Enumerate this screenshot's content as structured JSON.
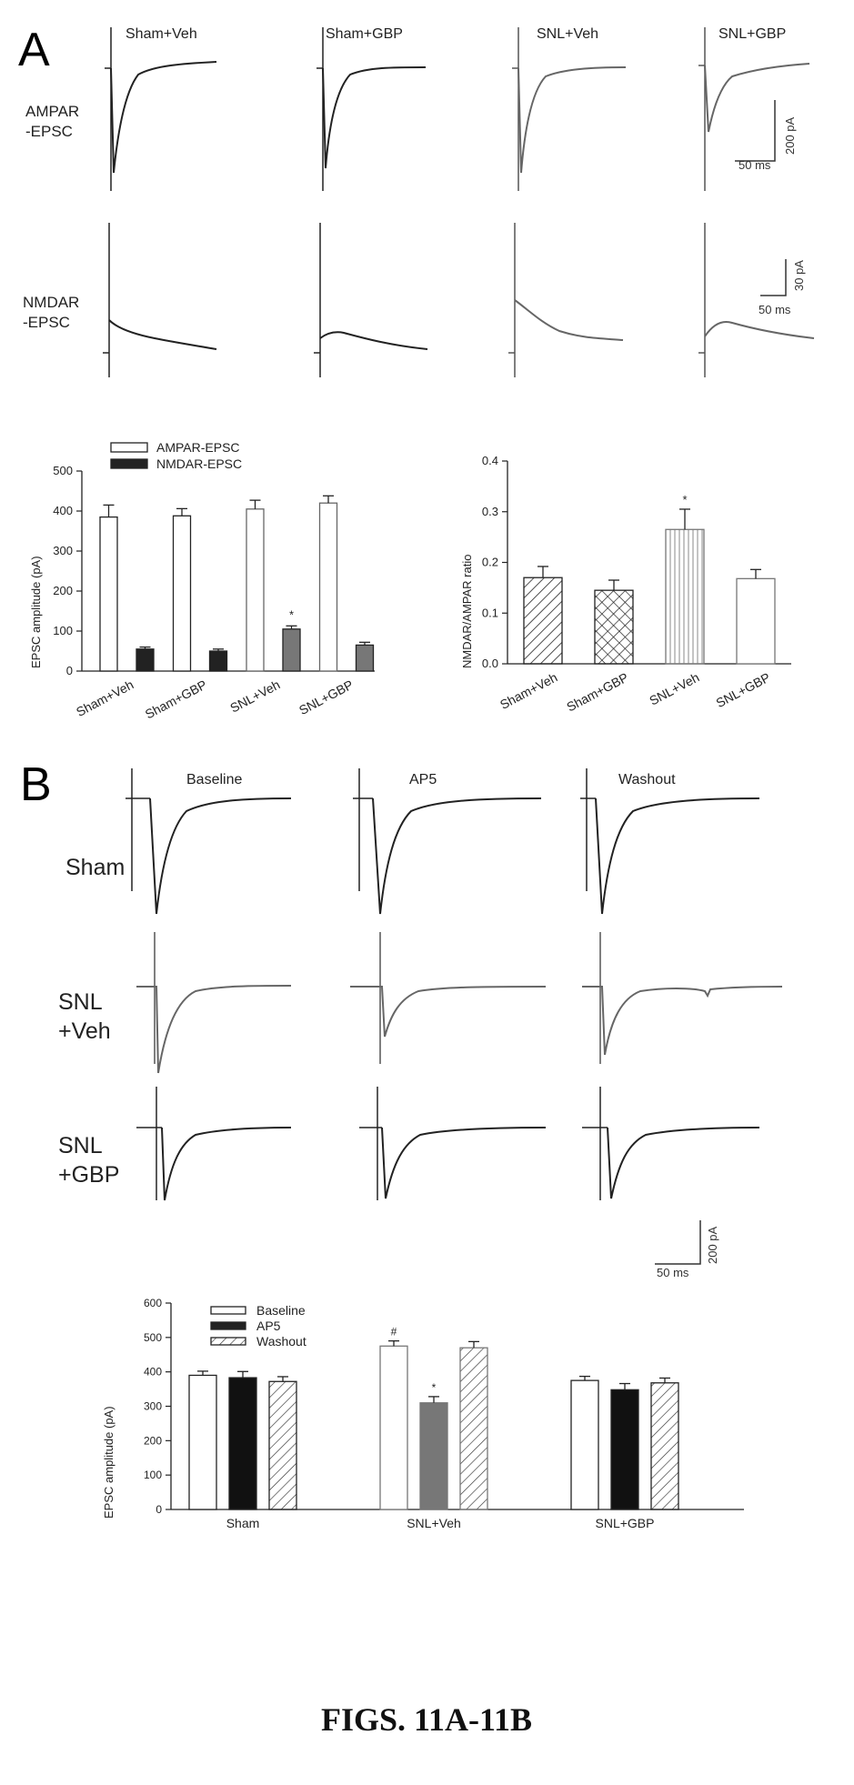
{
  "panel_a": {
    "letter": "A",
    "conditions": [
      "Sham+Veh",
      "Sham+GBP",
      "SNL+Veh",
      "SNL+GBP"
    ],
    "row_labels": {
      "ampar": [
        "AMPAR",
        "-EPSC"
      ],
      "nmdar": [
        "NMDAR",
        "-EPSC"
      ]
    },
    "scale_ampar": {
      "amp": "200 pA",
      "time": "50 ms"
    },
    "scale_nmdar": {
      "amp": "30 pA",
      "time": "50 ms"
    }
  },
  "panel_b": {
    "letter": "B",
    "conditions": [
      "Baseline",
      "AP5",
      "Washout"
    ],
    "row_labels": [
      [
        "Sham"
      ],
      [
        "SNL",
        "+Veh"
      ],
      [
        "SNL",
        "+GBP"
      ]
    ],
    "scale": {
      "amp": "200 pA",
      "time": "50 ms"
    }
  },
  "caption": "FIGS. 11A-11B",
  "chart_data": [
    {
      "id": "a_amplitude",
      "type": "bar",
      "ylabel": "EPSC amplitude (pA)",
      "ylim": [
        0,
        500
      ],
      "yticks": [
        0,
        100,
        200,
        300,
        400,
        500
      ],
      "categories": [
        "Sham+Veh",
        "Sham+GBP",
        "SNL+Veh",
        "SNL+GBP"
      ],
      "legend_position": "top-left",
      "series": [
        {
          "name": "AMPAR-EPSC",
          "values": [
            385,
            388,
            405,
            420
          ],
          "errors": [
            30,
            18,
            22,
            18
          ],
          "fill": "white"
        },
        {
          "name": "NMDAR-EPSC",
          "values": [
            55,
            50,
            105,
            65
          ],
          "errors": [
            5,
            5,
            8,
            7
          ],
          "fill": "dark"
        }
      ],
      "annotations": [
        {
          "category": "SNL+Veh",
          "series": "NMDAR-EPSC",
          "text": "*"
        }
      ]
    },
    {
      "id": "a_ratio",
      "type": "bar",
      "ylabel": "NMDAR/AMPAR ratio",
      "ylim": [
        0,
        0.4
      ],
      "yticks": [
        "0.0",
        "0.1",
        "0.2",
        "0.3",
        "0.4"
      ],
      "categories": [
        "Sham+Veh",
        "Sham+GBP",
        "SNL+Veh",
        "SNL+GBP"
      ],
      "values": [
        0.17,
        0.145,
        0.265,
        0.168
      ],
      "errors": [
        0.022,
        0.02,
        0.04,
        0.018
      ],
      "patterns": [
        "diagonal",
        "crosshatch",
        "vertical",
        "white"
      ],
      "annotations": [
        {
          "category": "SNL+Veh",
          "text": "*"
        }
      ]
    },
    {
      "id": "b_amplitude",
      "type": "bar",
      "ylabel": "EPSC amplitude (pA)",
      "ylim": [
        0,
        600
      ],
      "yticks": [
        0,
        100,
        200,
        300,
        400,
        500,
        600
      ],
      "categories": [
        "Sham",
        "SNL+Veh",
        "SNL+GBP"
      ],
      "legend_position": "top-left",
      "series": [
        {
          "name": "Baseline",
          "values": [
            390,
            475,
            375
          ],
          "errors": [
            12,
            15,
            12
          ],
          "fill": "white"
        },
        {
          "name": "AP5",
          "values": [
            383,
            310,
            348
          ],
          "errors": [
            18,
            18,
            18
          ],
          "fill": "dark"
        },
        {
          "name": "Washout",
          "values": [
            372,
            470,
            368
          ],
          "errors": [
            14,
            18,
            14
          ],
          "fill": "hatch"
        }
      ],
      "annotations": [
        {
          "category": "SNL+Veh",
          "series": "Baseline",
          "text": "#"
        },
        {
          "category": "SNL+Veh",
          "series": "AP5",
          "text": "*"
        }
      ]
    }
  ]
}
